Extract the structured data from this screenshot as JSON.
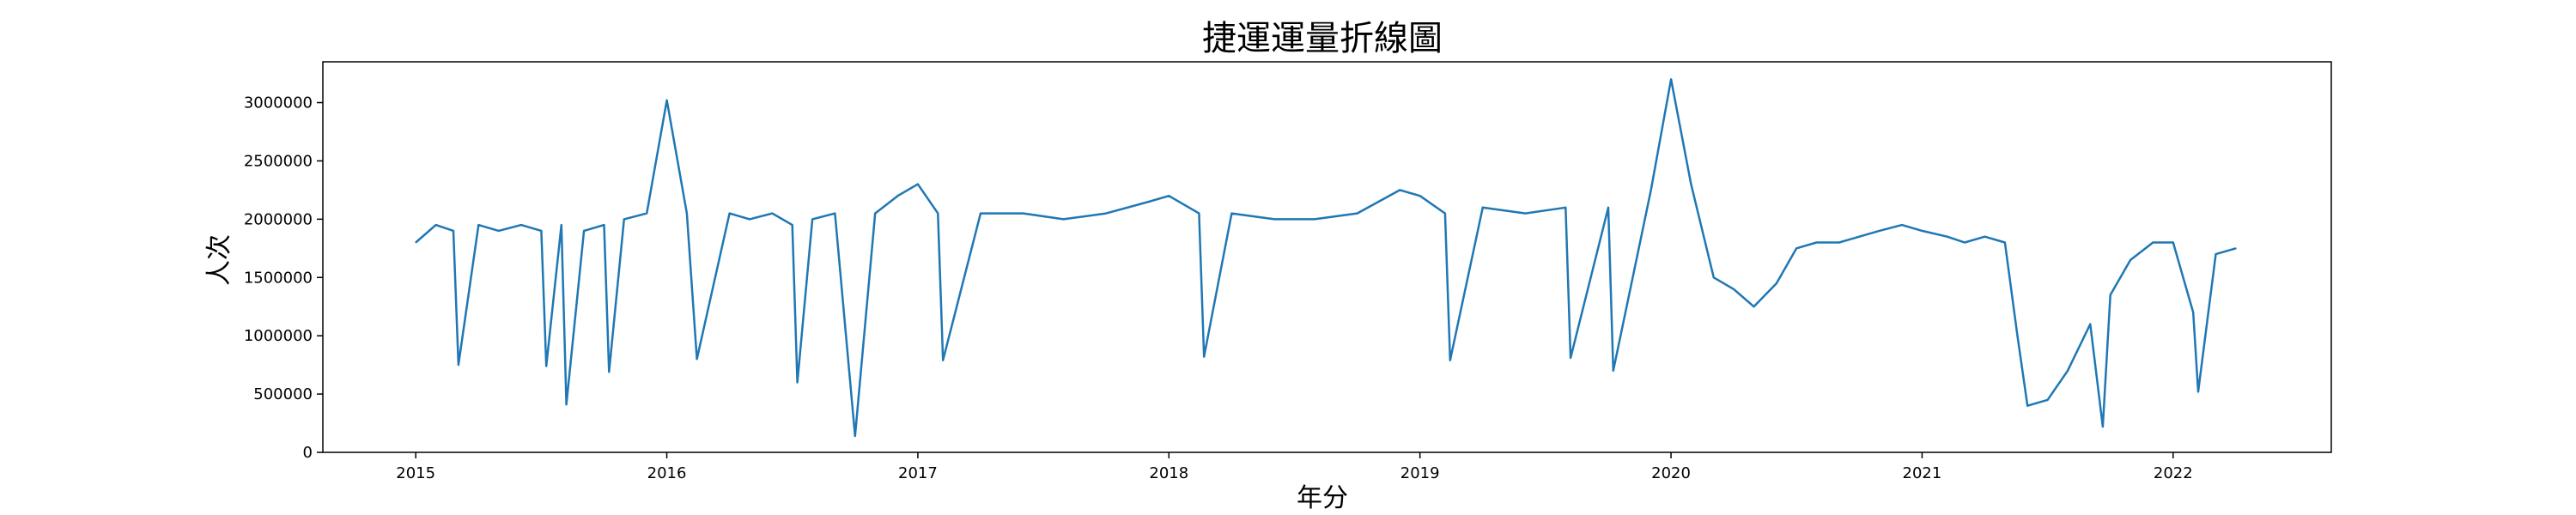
{
  "chart_data": {
    "type": "line",
    "title": "捷運運量折線圖",
    "xlabel": "年分",
    "ylabel": "人次",
    "xlim": [
      2014.63,
      2022.63
    ],
    "ylim": [
      0,
      3350000
    ],
    "xticks": [
      2015,
      2016,
      2017,
      2018,
      2019,
      2020,
      2021,
      2022
    ],
    "xtick_labels": [
      "2015",
      "2016",
      "2017",
      "2018",
      "2019",
      "2020",
      "2021",
      "2022"
    ],
    "yticks": [
      0,
      500000,
      1000000,
      1500000,
      2000000,
      2500000,
      3000000
    ],
    "ytick_labels": [
      "0",
      "500000",
      "1000000",
      "1500000",
      "2000000",
      "2500000",
      "3000000"
    ],
    "grid": false,
    "legend": "none",
    "series": [
      {
        "color": "#1f77b4",
        "x": [
          2015.0,
          2015.08,
          2015.15,
          2015.17,
          2015.25,
          2015.33,
          2015.42,
          2015.5,
          2015.52,
          2015.58,
          2015.6,
          2015.67,
          2015.75,
          2015.77,
          2015.83,
          2015.92,
          2016.0,
          2016.08,
          2016.12,
          2016.25,
          2016.33,
          2016.42,
          2016.5,
          2016.52,
          2016.58,
          2016.67,
          2016.72,
          2016.75,
          2016.83,
          2016.92,
          2017.0,
          2017.08,
          2017.1,
          2017.25,
          2017.42,
          2017.58,
          2017.75,
          2017.92,
          2018.0,
          2018.12,
          2018.14,
          2018.25,
          2018.42,
          2018.58,
          2018.75,
          2018.92,
          2019.0,
          2019.1,
          2019.12,
          2019.25,
          2019.42,
          2019.58,
          2019.6,
          2019.75,
          2019.77,
          2019.92,
          2020.0,
          2020.08,
          2020.17,
          2020.25,
          2020.33,
          2020.42,
          2020.5,
          2020.58,
          2020.67,
          2020.75,
          2020.83,
          2020.92,
          2021.0,
          2021.1,
          2021.17,
          2021.25,
          2021.33,
          2021.38,
          2021.42,
          2021.5,
          2021.58,
          2021.67,
          2021.72,
          2021.75,
          2021.83,
          2021.92,
          2022.0,
          2022.08,
          2022.1,
          2022.17,
          2022.25
        ],
        "y": [
          1800000,
          1950000,
          1900000,
          750000,
          1950000,
          1900000,
          1950000,
          1900000,
          740000,
          1950000,
          410000,
          1900000,
          1950000,
          690000,
          2000000,
          2050000,
          3020000,
          2050000,
          800000,
          2050000,
          2000000,
          2050000,
          1950000,
          600000,
          2000000,
          2050000,
          850000,
          140000,
          2050000,
          2200000,
          2300000,
          2050000,
          790000,
          2050000,
          2050000,
          2000000,
          2050000,
          2150000,
          2200000,
          2050000,
          820000,
          2050000,
          2000000,
          2000000,
          2050000,
          2250000,
          2200000,
          2050000,
          790000,
          2100000,
          2050000,
          2100000,
          810000,
          2100000,
          700000,
          2250000,
          3200000,
          2300000,
          1500000,
          1400000,
          1250000,
          1450000,
          1750000,
          1800000,
          1800000,
          1850000,
          1900000,
          1950000,
          1900000,
          1850000,
          1800000,
          1850000,
          1800000,
          1000000,
          400000,
          450000,
          700000,
          1100000,
          220000,
          1350000,
          1650000,
          1800000,
          1800000,
          1200000,
          520000,
          1700000,
          1750000
        ]
      }
    ]
  }
}
